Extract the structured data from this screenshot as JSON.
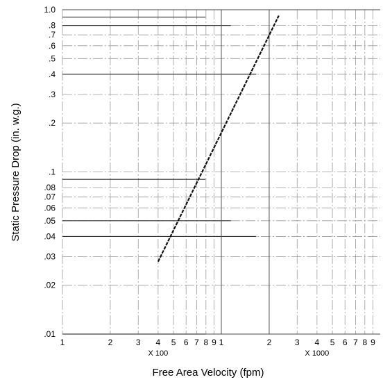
{
  "chart_data": {
    "type": "line",
    "xlabel": "Free Area Velocity (fpm)",
    "ylabel": "Static Pressure Drop (in. w.g.)",
    "x_scale": "log",
    "y_scale": "log",
    "xlim": [
      100,
      10000
    ],
    "ylim": [
      0.01,
      1.0
    ],
    "grid": "log",
    "x_ticks": [
      {
        "value": 100,
        "label": "1"
      },
      {
        "value": 200,
        "label": "2"
      },
      {
        "value": 300,
        "label": "3"
      },
      {
        "value": 400,
        "label": "4"
      },
      {
        "value": 500,
        "label": "5"
      },
      {
        "value": 600,
        "label": "6"
      },
      {
        "value": 700,
        "label": "7"
      },
      {
        "value": 800,
        "label": "8"
      },
      {
        "value": 900,
        "label": "9"
      },
      {
        "value": 1000,
        "label": "1"
      },
      {
        "value": 2000,
        "label": "2"
      },
      {
        "value": 3000,
        "label": "3"
      },
      {
        "value": 4000,
        "label": "4"
      },
      {
        "value": 5000,
        "label": "5"
      },
      {
        "value": 6000,
        "label": "6"
      },
      {
        "value": 7000,
        "label": "7"
      },
      {
        "value": 8000,
        "label": "8"
      },
      {
        "value": 9000,
        "label": "9"
      }
    ],
    "x_multipliers": [
      {
        "value": 400,
        "label": "X 100"
      },
      {
        "value": 4000,
        "label": "X 1000"
      }
    ],
    "y_ticks": [
      {
        "value": 0.01,
        "label": ".01"
      },
      {
        "value": 0.02,
        "label": ".02"
      },
      {
        "value": 0.03,
        "label": ".03"
      },
      {
        "value": 0.04,
        "label": ".04"
      },
      {
        "value": 0.05,
        "label": ".05"
      },
      {
        "value": 0.06,
        "label": ".06"
      },
      {
        "value": 0.07,
        "label": ".07"
      },
      {
        "value": 0.08,
        "label": ".08"
      },
      {
        "value": 0.1,
        "label": ".1"
      },
      {
        "value": 0.2,
        "label": ".2"
      },
      {
        "value": 0.3,
        "label": ".3"
      },
      {
        "value": 0.4,
        "label": ".4"
      },
      {
        "value": 0.5,
        "label": ".5"
      },
      {
        "value": 0.6,
        "label": ".6"
      },
      {
        "value": 0.7,
        "label": ".7"
      },
      {
        "value": 0.8,
        "label": ".8"
      },
      {
        "value": 1.0,
        "label": "1.0"
      }
    ],
    "series": [
      {
        "points": [
          {
            "x": 400,
            "y": 0.028
          },
          {
            "x": 2300,
            "y": 0.92
          }
        ]
      }
    ]
  }
}
